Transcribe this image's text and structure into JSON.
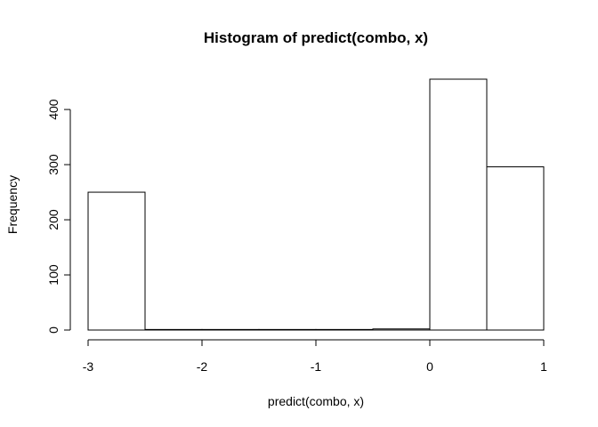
{
  "chart_data": {
    "type": "bar",
    "title": "Histogram of predict(combo, x)",
    "xlabel": "predict(combo, x)",
    "ylabel": "Frequency",
    "bins": [
      {
        "x0": -3.0,
        "x1": -2.5,
        "count": 250
      },
      {
        "x0": -2.5,
        "x1": -2.0,
        "count": 1
      },
      {
        "x0": -2.0,
        "x1": -1.5,
        "count": 1
      },
      {
        "x0": -1.5,
        "x1": -1.0,
        "count": 1
      },
      {
        "x0": -1.0,
        "x1": -0.5,
        "count": 1
      },
      {
        "x0": -0.5,
        "x1": 0.0,
        "count": 2
      },
      {
        "x0": 0.0,
        "x1": 0.5,
        "count": 455
      },
      {
        "x0": 0.5,
        "x1": 1.0,
        "count": 296
      }
    ],
    "xlim": [
      -3,
      1
    ],
    "ylim": [
      0,
      455
    ],
    "xticks": [
      "-3",
      "-2",
      "-1",
      "0",
      "1"
    ],
    "yticks": [
      "0",
      "100",
      "200",
      "300",
      "400"
    ],
    "grid": false,
    "colors": {
      "bar_fill": "#ffffff",
      "bar_stroke": "#000000"
    }
  }
}
